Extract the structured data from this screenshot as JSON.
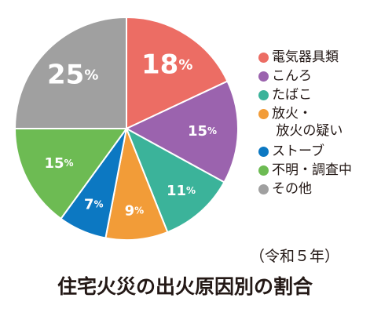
{
  "chart_data": {
    "type": "pie",
    "title": "住宅火災の出火原因別の割合",
    "subtitle": "（令和５年）",
    "legend_position": "right",
    "categories": [
      "電気器具類",
      "こんろ",
      "たばこ",
      "放火・\n放火の疑い",
      "ストーブ",
      "不明・調査中",
      "その他"
    ],
    "values": [
      18,
      15,
      11,
      9,
      7,
      15,
      25
    ],
    "value_labels": [
      "18%",
      "15%",
      "11%",
      "9%",
      "7%",
      "15%",
      "25%"
    ],
    "colors": [
      "#EC6D64",
      "#9B63AE",
      "#3BB39A",
      "#F29C38",
      "#0C78C2",
      "#6DBB53",
      "#A0A0A0"
    ]
  }
}
